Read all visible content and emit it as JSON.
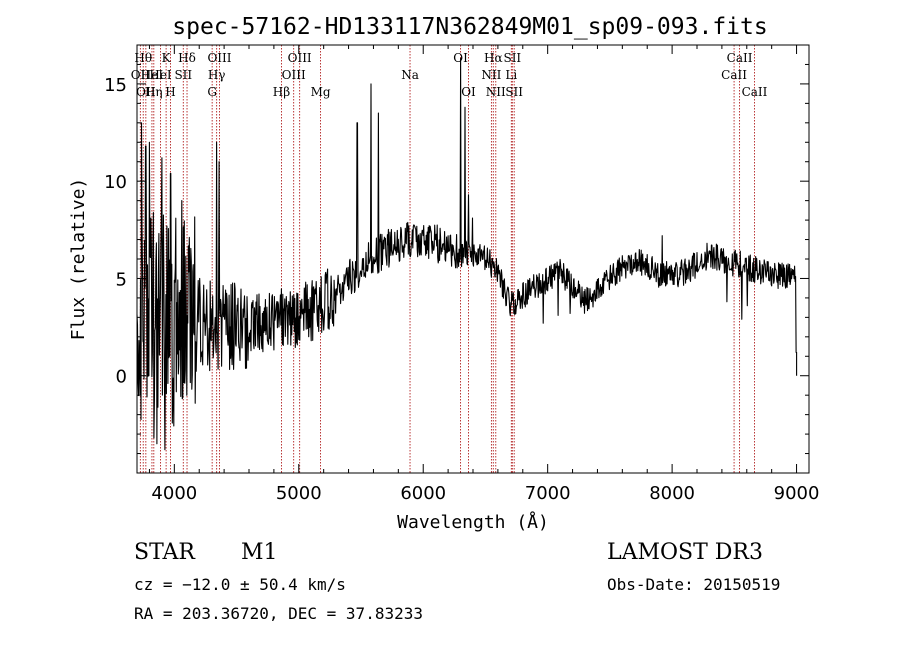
{
  "chart_data": {
    "type": "line",
    "title": "spec-57162-HD133117N362849M01_sp09-093.fits",
    "xlabel": "Wavelength (Å)",
    "ylabel": "Flux (relative)",
    "xlim": [
      3700,
      9100
    ],
    "ylim": [
      -5,
      17
    ],
    "x_ticks": [
      4000,
      5000,
      6000,
      7000,
      8000,
      9000
    ],
    "y_ticks": [
      0,
      5,
      10,
      15
    ],
    "grid": false,
    "series": [
      {
        "name": "spectrum",
        "anchors_x": [
          3700,
          3900,
          4100,
          4300,
          4500,
          4700,
          4900,
          5100,
          5300,
          5500,
          5700,
          5900,
          6100,
          6300,
          6500,
          6600,
          6700,
          6900,
          7100,
          7300,
          7500,
          7700,
          7900,
          8100,
          8300,
          8500,
          8700,
          8900,
          9000
        ],
        "anchors_y": [
          3.0,
          3.0,
          2.8,
          2.5,
          2.6,
          2.8,
          2.9,
          3.3,
          4.2,
          5.6,
          6.5,
          7.0,
          6.8,
          6.3,
          6.0,
          5.4,
          3.6,
          4.6,
          5.3,
          3.8,
          5.0,
          6.0,
          5.2,
          5.3,
          6.2,
          5.8,
          5.4,
          5.1,
          5.0
        ],
        "peaks": [
          {
            "x": 3735,
            "y": 13.0
          },
          {
            "x": 3770,
            "y": 11.8
          },
          {
            "x": 3800,
            "y": 12.0
          },
          {
            "x": 3835,
            "y": -3.2
          },
          {
            "x": 3860,
            "y": -3.5
          },
          {
            "x": 3900,
            "y": 11.2
          },
          {
            "x": 3925,
            "y": -3.8
          },
          {
            "x": 3970,
            "y": 10.4
          },
          {
            "x": 4060,
            "y": 9.0
          },
          {
            "x": 4100,
            "y": -1.0
          },
          {
            "x": 4340,
            "y": 12.0
          },
          {
            "x": 4360,
            "y": 11.0
          },
          {
            "x": 5470,
            "y": 13.0
          },
          {
            "x": 5580,
            "y": 15.0
          },
          {
            "x": 5640,
            "y": 13.5
          },
          {
            "x": 6300,
            "y": 16.3
          },
          {
            "x": 6335,
            "y": 13.8
          },
          {
            "x": 6365,
            "y": 9.3
          },
          {
            "x": 6395,
            "y": 8.1
          },
          {
            "x": 6965,
            "y": 2.7
          },
          {
            "x": 7085,
            "y": 3.1
          },
          {
            "x": 7180,
            "y": 3.2
          },
          {
            "x": 7920,
            "y": 7.2
          },
          {
            "x": 8440,
            "y": 3.8
          },
          {
            "x": 8560,
            "y": 2.9
          },
          {
            "x": 8605,
            "y": 3.6
          },
          {
            "x": 8998,
            "y": 1.2
          }
        ]
      }
    ],
    "line_markers": [
      {
        "wave": 3727,
        "label": "OII",
        "row": 2
      },
      {
        "wave": 3750,
        "label": "Hθ",
        "row": 1
      },
      {
        "wave": 3771,
        "label": "OII",
        "row": 3
      },
      {
        "wave": 3820,
        "label": "HeI",
        "row": 2
      },
      {
        "wave": 3835,
        "label": "Hη",
        "row": 3
      },
      {
        "wave": 3889,
        "label": "HeI",
        "row": 2
      },
      {
        "wave": 3934,
        "label": "K",
        "row": 1
      },
      {
        "wave": 3969,
        "label": "H",
        "row": 3
      },
      {
        "wave": 4072,
        "label": "SII",
        "row": 2
      },
      {
        "wave": 4102,
        "label": "Hδ",
        "row": 1
      },
      {
        "wave": 4304,
        "label": "G",
        "row": 3
      },
      {
        "wave": 4340,
        "label": "Hγ",
        "row": 2
      },
      {
        "wave": 4363,
        "label": "OIII",
        "row": 1
      },
      {
        "wave": 4861,
        "label": "Hβ",
        "row": 3
      },
      {
        "wave": 4959,
        "label": "OIII",
        "row": 2
      },
      {
        "wave": 5007,
        "label": "OIII",
        "row": 1
      },
      {
        "wave": 5175,
        "label": "Mg",
        "row": 3
      },
      {
        "wave": 5894,
        "label": "Na",
        "row": 2
      },
      {
        "wave": 6300,
        "label": "OI",
        "row": 1
      },
      {
        "wave": 6364,
        "label": "OI",
        "row": 3
      },
      {
        "wave": 6548,
        "label": "NII",
        "row": 2
      },
      {
        "wave": 6563,
        "label": "Hα",
        "row": 1
      },
      {
        "wave": 6583,
        "label": "NII",
        "row": 3
      },
      {
        "wave": 6708,
        "label": "Li",
        "row": 2
      },
      {
        "wave": 6716,
        "label": "SII",
        "row": 1
      },
      {
        "wave": 6731,
        "label": "SII",
        "row": 3
      },
      {
        "wave": 8498,
        "label": "CaII",
        "row": 2
      },
      {
        "wave": 8542,
        "label": "CaII",
        "row": 1
      },
      {
        "wave": 8662,
        "label": "CaII",
        "row": 3
      }
    ]
  },
  "info": {
    "object_class": "STAR",
    "subclass": "M1",
    "redshift_text": "cz = −12.0 ± 50.4 km/s",
    "coords_text": "RA = 203.36720, DEC =  37.83233",
    "survey": "LAMOST DR3",
    "obs_date_text": "Obs-Date: 20150519"
  },
  "colors": {
    "spectrum": "#000000",
    "marker_line": "#b22222",
    "axes": "#000000"
  }
}
